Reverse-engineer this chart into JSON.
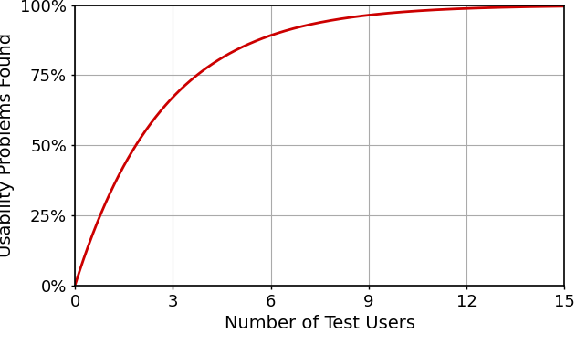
{
  "title": "",
  "xlabel": "Number of Test Users",
  "ylabel": "Usability Problems Found",
  "line_color": "#cc0000",
  "line_width": 2.0,
  "background_color": "#ffffff",
  "grid_color": "#aaaaaa",
  "p": 0.31,
  "x_min": 0,
  "x_max": 15,
  "y_min": 0,
  "y_max": 1.0,
  "x_ticks": [
    0,
    3,
    6,
    9,
    12,
    15
  ],
  "y_ticks": [
    0,
    0.25,
    0.5,
    0.75,
    1.0
  ],
  "y_tick_labels": [
    "0%",
    "25%",
    "50%",
    "75%",
    "100%"
  ],
  "xlabel_fontsize": 14,
  "ylabel_fontsize": 14,
  "tick_fontsize": 13
}
